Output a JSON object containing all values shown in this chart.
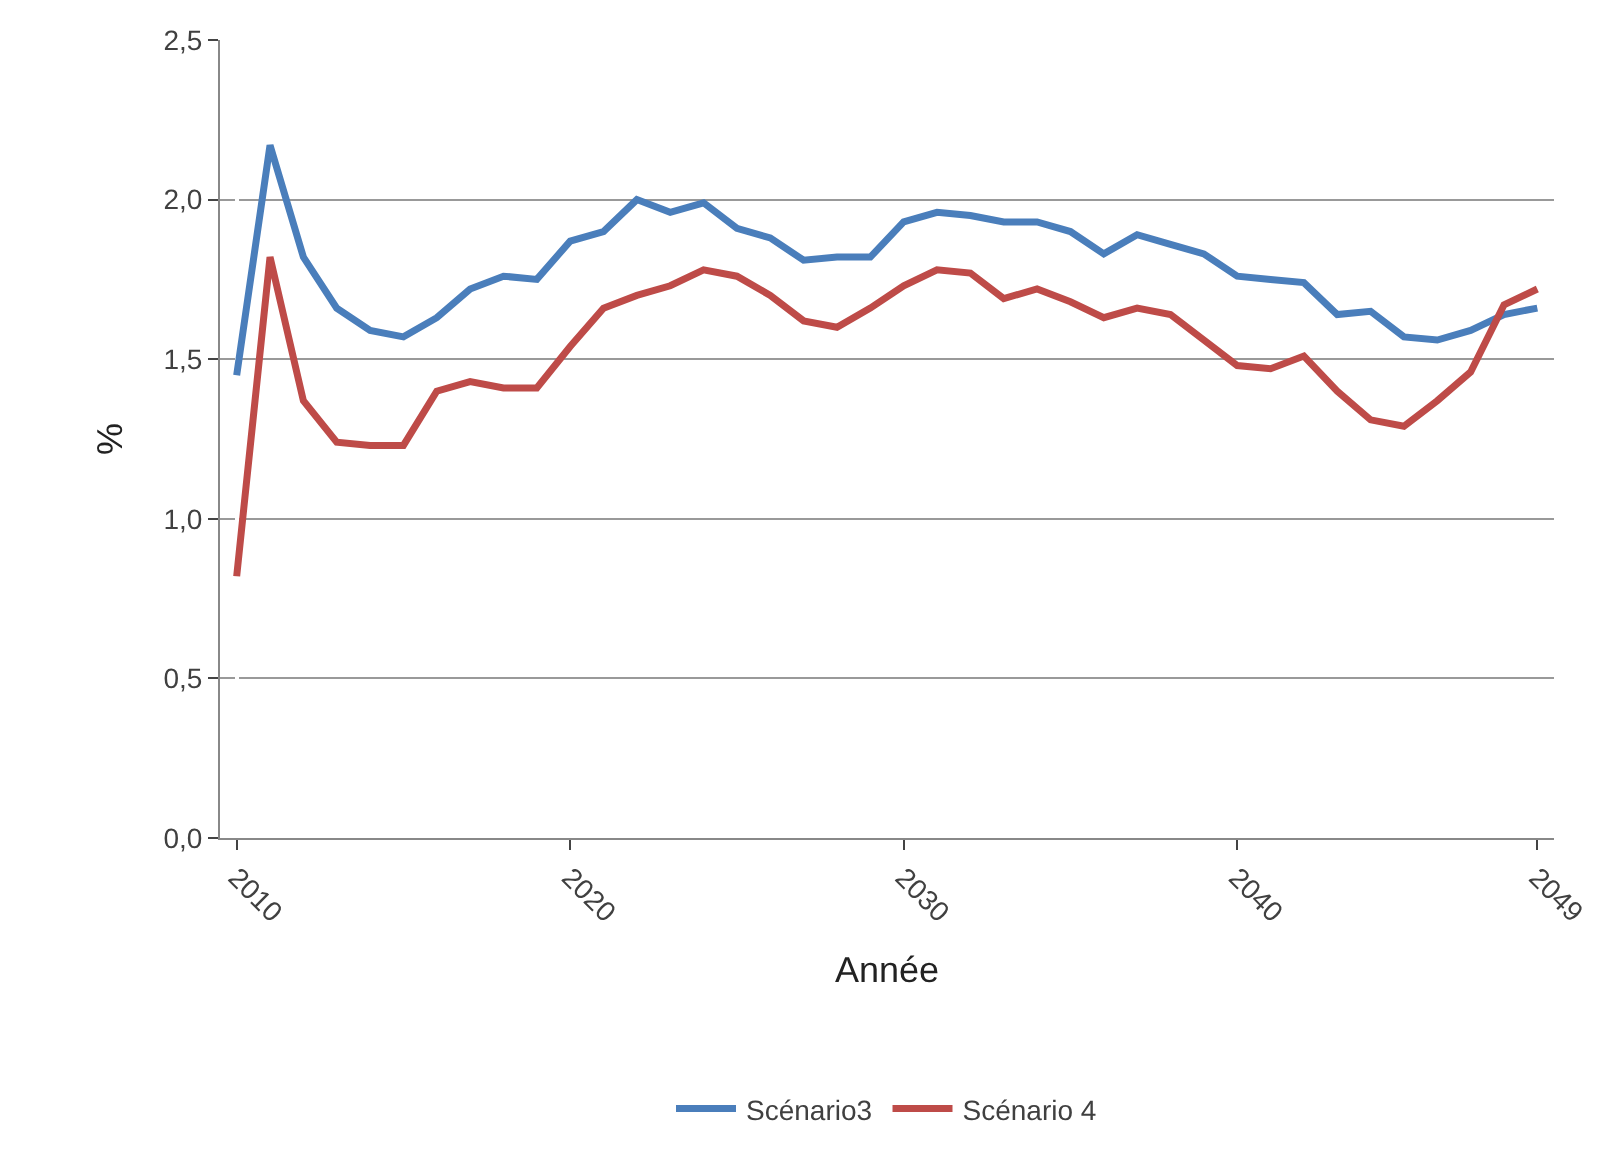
{
  "chart_data": {
    "type": "line",
    "xlabel": "Année",
    "ylabel": "%",
    "categories": [
      "2010",
      null,
      null,
      null,
      null,
      null,
      null,
      null,
      null,
      null,
      "2020",
      null,
      null,
      null,
      null,
      null,
      null,
      null,
      null,
      null,
      "2030",
      null,
      null,
      null,
      null,
      null,
      null,
      null,
      null,
      null,
      "2040",
      null,
      null,
      null,
      null,
      null,
      null,
      null,
      null,
      "2049"
    ],
    "series": [
      {
        "name": "Scénario3",
        "color": "#4a7ebb",
        "values": [
          1.45,
          2.17,
          1.82,
          1.66,
          1.59,
          1.57,
          1.63,
          1.72,
          1.76,
          1.75,
          1.87,
          1.9,
          2.0,
          1.96,
          1.99,
          1.91,
          1.88,
          1.81,
          1.82,
          1.82,
          1.93,
          1.96,
          1.95,
          1.93,
          1.93,
          1.9,
          1.83,
          1.89,
          1.86,
          1.83,
          1.76,
          1.75,
          1.74,
          1.64,
          1.65,
          1.57,
          1.56,
          1.59,
          1.64,
          1.66
        ]
      },
      {
        "name": "Scénario 4",
        "color": "#be4b48",
        "values": [
          0.82,
          1.82,
          1.37,
          1.24,
          1.23,
          1.23,
          1.4,
          1.43,
          1.41,
          1.41,
          1.54,
          1.66,
          1.7,
          1.73,
          1.78,
          1.76,
          1.7,
          1.62,
          1.6,
          1.66,
          1.73,
          1.78,
          1.77,
          1.69,
          1.72,
          1.68,
          1.63,
          1.66,
          1.64,
          1.56,
          1.48,
          1.47,
          1.51,
          1.4,
          1.31,
          1.29,
          1.37,
          1.46,
          1.67,
          1.72
        ]
      }
    ],
    "ylim": [
      0,
      2.5
    ],
    "yticks": [
      {
        "value": 0,
        "label": "0,0"
      },
      {
        "value": 0.5,
        "label": "0,5"
      },
      {
        "value": 1,
        "label": "1,0"
      },
      {
        "value": 1.5,
        "label": "1,5"
      },
      {
        "value": 2,
        "label": "2,0"
      },
      {
        "value": 2.5,
        "label": "2,5"
      }
    ],
    "grid": "y",
    "legend": "bottom",
    "marker": "none",
    "line_style": "solid"
  }
}
